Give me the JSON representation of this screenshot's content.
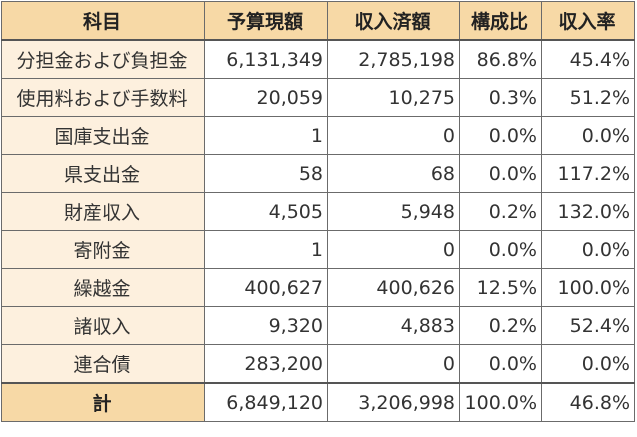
{
  "chart_data": {
    "type": "table",
    "columns": [
      "科目",
      "予算現額",
      "収入済額",
      "構成比",
      "収入率"
    ],
    "rows": [
      [
        "分担金および負担金",
        "6,131,349",
        "2,785,198",
        "86.8%",
        "45.4%"
      ],
      [
        "使用料および手数料",
        "20,059",
        "10,275",
        "0.3%",
        "51.2%"
      ],
      [
        "国庫支出金",
        "1",
        "0",
        "0.0%",
        "0.0%"
      ],
      [
        "県支出金",
        "58",
        "68",
        "0.0%",
        "117.2%"
      ],
      [
        "財産収入",
        "4,505",
        "5,948",
        "0.2%",
        "132.0%"
      ],
      [
        "寄附金",
        "1",
        "0",
        "0.0%",
        "0.0%"
      ],
      [
        "繰越金",
        "400,627",
        "400,626",
        "12.5%",
        "100.0%"
      ],
      [
        "諸収入",
        "9,320",
        "4,883",
        "0.2%",
        "52.4%"
      ],
      [
        "連合債",
        "283,200",
        "0",
        "0.0%",
        "0.0%"
      ]
    ],
    "total": [
      "計",
      "6,849,120",
      "3,206,998",
      "100.0%",
      "46.8%"
    ],
    "colors": {
      "header_bg": "#f7d9a6",
      "label_bg": "#fdf0de",
      "border": "#6b6b6b"
    }
  }
}
